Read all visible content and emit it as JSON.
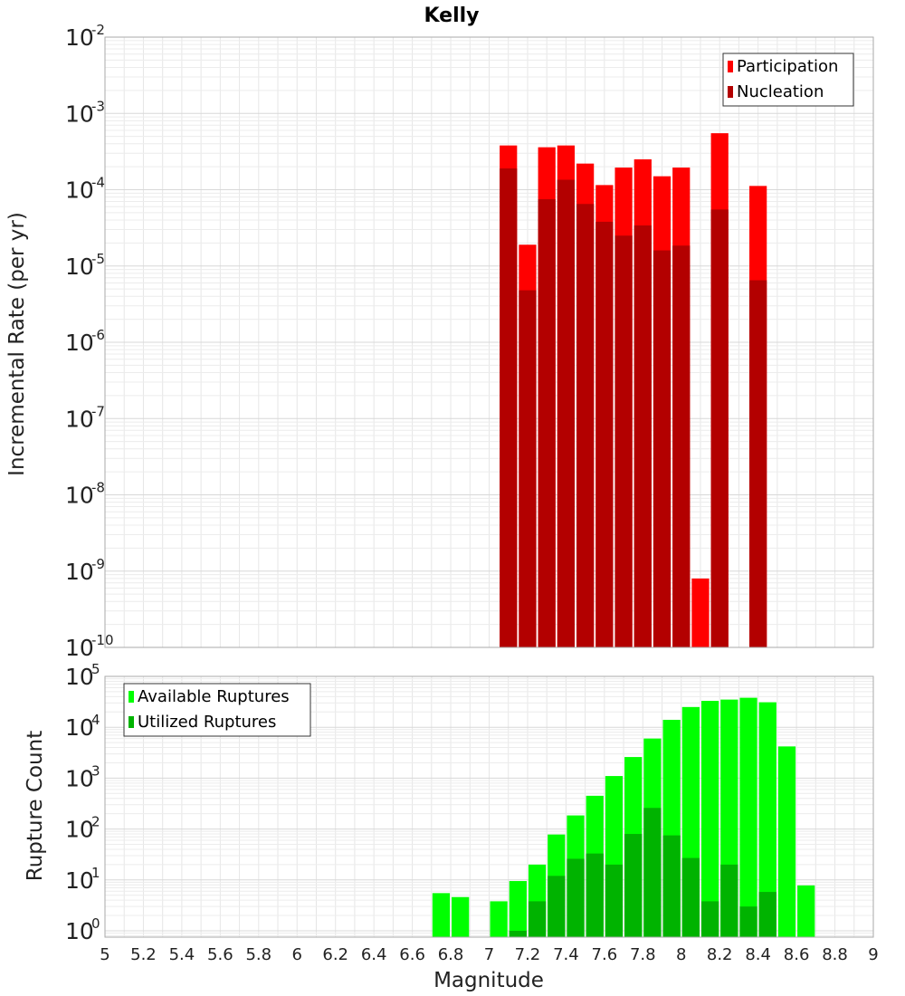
{
  "chart_data": [
    {
      "type": "bar",
      "title": "Kelly",
      "xlabel": "",
      "ylabel": "Incremental Rate (per yr)",
      "yscale": "log",
      "xlim": [
        5,
        9
      ],
      "ylim": [
        1e-10,
        0.01
      ],
      "bar_width": 0.1,
      "grid": true,
      "legend_position": "top-right",
      "y_tick_exponents": [
        -10,
        -9,
        -8,
        -7,
        -6,
        -5,
        -4,
        -3,
        -2
      ],
      "series": [
        {
          "name": "Participation",
          "color": "#ff0000",
          "x": [
            7.1,
            7.2,
            7.3,
            7.4,
            7.5,
            7.6,
            7.7,
            7.8,
            7.9,
            8.0,
            8.1,
            8.2,
            8.3,
            8.4,
            8.5
          ],
          "values": [
            0.00038,
            1.9e-05,
            0.00036,
            0.00038,
            0.00022,
            0.000115,
            0.000195,
            0.00025,
            0.00015,
            0.000195,
            8e-10,
            0.00055,
            null,
            0.000112,
            null
          ]
        },
        {
          "name": "Nucleation",
          "color": "#b30000",
          "x": [
            7.1,
            7.2,
            7.3,
            7.4,
            7.5,
            7.6,
            7.7,
            7.8,
            7.9,
            8.0,
            8.1,
            8.2,
            8.3,
            8.4,
            8.5
          ],
          "values": [
            0.00019,
            4.8e-06,
            7.5e-05,
            0.000135,
            6.5e-05,
            3.8e-05,
            2.5e-05,
            3.4e-05,
            1.6e-05,
            1.85e-05,
            null,
            5.5e-05,
            null,
            6.5e-06,
            null
          ]
        }
      ]
    },
    {
      "type": "bar",
      "title": "",
      "xlabel": "Magnitude",
      "ylabel": "Rupture Count",
      "yscale": "log",
      "xlim": [
        5,
        9
      ],
      "ylim": [
        0.75,
        100000.0
      ],
      "bar_width": 0.1,
      "grid": true,
      "legend_position": "top-left",
      "y_tick_exponents": [
        0,
        1,
        2,
        3,
        4,
        5
      ],
      "x_ticks": [
        "5",
        "5.2",
        "5.4",
        "5.6",
        "5.8",
        "6",
        "6.2",
        "6.4",
        "6.6",
        "6.8",
        "7",
        "7.2",
        "7.4",
        "7.6",
        "7.8",
        "8",
        "8.2",
        "8.4",
        "8.6",
        "8.8",
        "9"
      ],
      "series": [
        {
          "name": "Available Ruptures",
          "color": "#00ff00",
          "x": [
            6.75,
            6.85,
            6.95,
            7.05,
            7.15,
            7.25,
            7.35,
            7.45,
            7.55,
            7.65,
            7.75,
            7.85,
            7.95,
            8.05,
            8.15,
            8.25,
            8.35,
            8.45,
            8.55,
            8.65
          ],
          "values": [
            5.5,
            4.6,
            null,
            3.8,
            9.5,
            20,
            78,
            185,
            450,
            1100,
            2600,
            6000,
            14000,
            25000,
            33000,
            35000,
            38000,
            31000,
            4200,
            7.8
          ]
        },
        {
          "name": "Utilized Ruptures",
          "color": "#00b300",
          "x": [
            6.75,
            6.85,
            6.95,
            7.05,
            7.15,
            7.25,
            7.35,
            7.45,
            7.55,
            7.65,
            7.75,
            7.85,
            7.95,
            8.05,
            8.15,
            8.25,
            8.35,
            8.45,
            8.55,
            8.65
          ],
          "values": [
            null,
            null,
            null,
            null,
            1,
            3.8,
            12,
            26,
            33,
            20,
            80,
            260,
            75,
            27,
            3.8,
            20,
            3,
            5.8,
            null,
            null
          ]
        }
      ]
    }
  ]
}
